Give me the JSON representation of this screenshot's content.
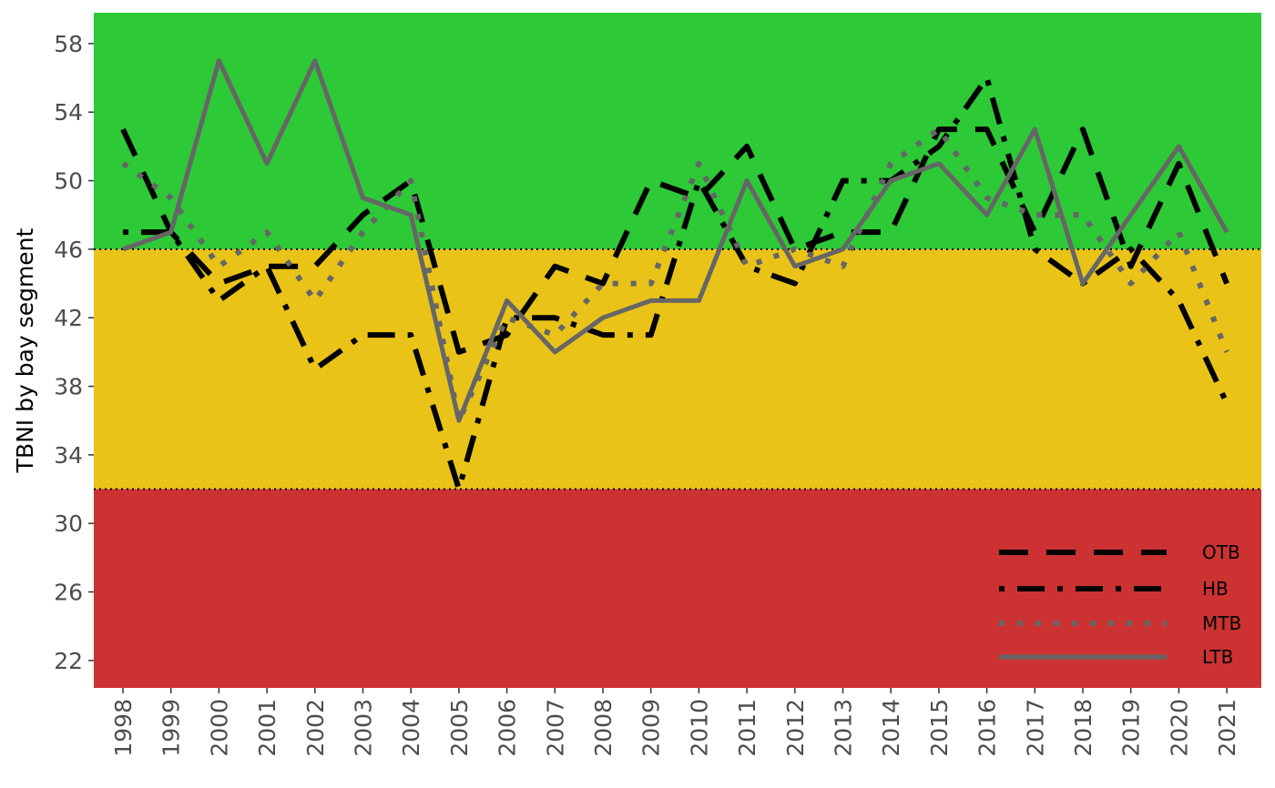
{
  "chart_data": {
    "type": "line",
    "ylabel": "TBNI by bay segment",
    "xlabel": "",
    "ylim": [
      20.4,
      59.8
    ],
    "yticks": [
      22,
      26,
      30,
      34,
      38,
      42,
      46,
      50,
      54,
      58
    ],
    "x": [
      "1998",
      "1999",
      "2000",
      "2001",
      "2002",
      "2003",
      "2004",
      "2005",
      "2006",
      "2007",
      "2008",
      "2009",
      "2010",
      "2011",
      "2012",
      "2013",
      "2014",
      "2015",
      "2016",
      "2017",
      "2018",
      "2019",
      "2020",
      "2021"
    ],
    "bands": [
      {
        "from": 20.4,
        "to": 32,
        "color": "#cc3232"
      },
      {
        "from": 32,
        "to": 46,
        "color": "#e9c318"
      },
      {
        "from": 46,
        "to": 59.8,
        "color": "#2dc937"
      }
    ],
    "thresholds": [
      32,
      46
    ],
    "series": [
      {
        "name": "OTB",
        "style": "dashed",
        "color": "#000000",
        "values": [
          53,
          47,
          44,
          45,
          45,
          48,
          50,
          40,
          41,
          45,
          44,
          50,
          49,
          52,
          46,
          47,
          47,
          53,
          53,
          47,
          53,
          45,
          51,
          44
        ]
      },
      {
        "name": "HB",
        "style": "dotdash",
        "color": "#000000",
        "values": [
          47,
          47,
          43,
          45,
          39,
          41,
          41,
          32,
          42,
          42,
          41,
          41,
          50,
          45,
          44,
          50,
          50,
          52,
          56,
          46,
          44,
          46,
          43,
          37
        ]
      },
      {
        "name": "MTB",
        "style": "dotted",
        "color": "#666666",
        "values": [
          51,
          49,
          45,
          47,
          43,
          47,
          50,
          36,
          42,
          41,
          44,
          44,
          51,
          45,
          46,
          45,
          51,
          53,
          49,
          48,
          48,
          44,
          47,
          40
        ]
      },
      {
        "name": "LTB",
        "style": "solid",
        "color": "#666666",
        "values": [
          46,
          47,
          57,
          51,
          57,
          49,
          48,
          36,
          43,
          40,
          42,
          43,
          43,
          50,
          45,
          46,
          50,
          51,
          48,
          53,
          44,
          48,
          52,
          47
        ]
      }
    ],
    "legend_position": "bottom-right"
  }
}
